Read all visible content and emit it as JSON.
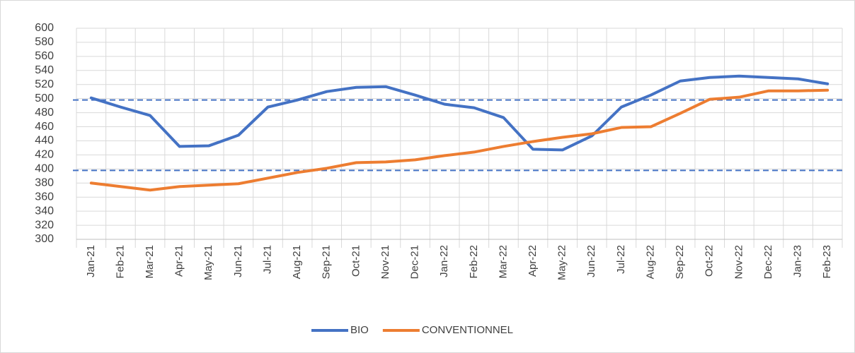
{
  "chart_data": {
    "type": "line",
    "categories": [
      "Jan-21",
      "Feb-21",
      "Mar-21",
      "Apr-21",
      "May-21",
      "Jun-21",
      "Jul-21",
      "Aug-21",
      "Sep-21",
      "Oct-21",
      "Nov-21",
      "Dec-21",
      "Jan-22",
      "Feb-22",
      "Mar-22",
      "Apr-22",
      "May-22",
      "Jun-22",
      "Jul-22",
      "Aug-22",
      "Sep-22",
      "Oct-22",
      "Nov-22",
      "Dec-22",
      "Jan-23",
      "Feb-23"
    ],
    "series": [
      {
        "name": "BIO",
        "color": "#4472c4",
        "values": [
          501,
          488,
          476,
          432,
          433,
          448,
          488,
          498,
          510,
          516,
          517,
          505,
          492,
          487,
          473,
          428,
          427,
          447,
          488,
          505,
          525,
          530,
          532,
          530,
          528,
          521
        ]
      },
      {
        "name": "CONVENTIONNEL",
        "color": "#ed7d31",
        "values": [
          380,
          375,
          370,
          375,
          377,
          379,
          387,
          395,
          401,
          409,
          410,
          413,
          419,
          424,
          432,
          439,
          445,
          450,
          459,
          460,
          479,
          499,
          502,
          511,
          511,
          512
        ]
      }
    ],
    "reference_lines": [
      498,
      398
    ],
    "reference_color": "#4472c4",
    "ylim": [
      300,
      600
    ],
    "yticks": [
      300,
      320,
      340,
      360,
      380,
      400,
      420,
      440,
      460,
      480,
      500,
      520,
      540,
      560,
      580,
      600
    ],
    "grid": true,
    "legend": "bottom"
  }
}
